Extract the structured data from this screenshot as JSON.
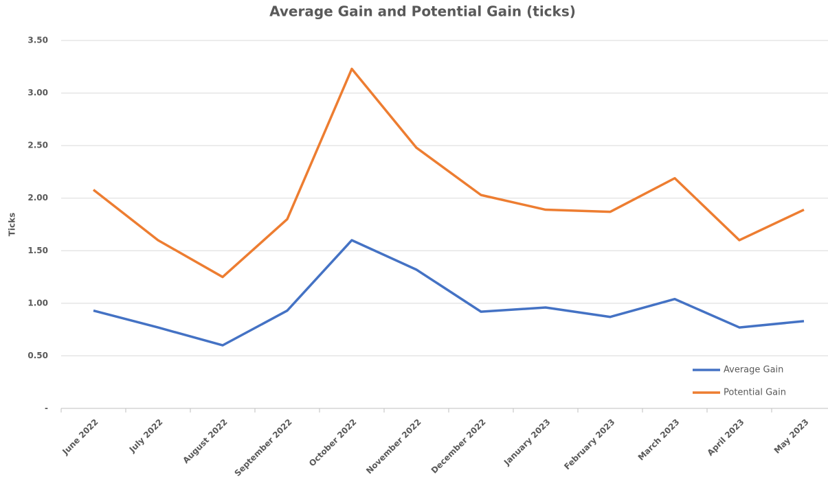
{
  "chart_data": {
    "type": "line",
    "title": "Average Gain and Potential Gain (ticks)",
    "y_label": "Ticks",
    "categories": [
      "June 2022",
      "July 2022",
      "August 2022",
      "September 2022",
      "October 2022",
      "November 2022",
      "December 2022",
      "January 2023",
      "February 2023",
      "March 2023",
      "April 2023",
      "May 2023"
    ],
    "series": [
      {
        "name": "Average Gain",
        "color": "#4472c4",
        "values": [
          0.93,
          0.77,
          0.6,
          0.93,
          1.6,
          1.32,
          0.92,
          0.96,
          0.87,
          1.04,
          0.77,
          0.83
        ]
      },
      {
        "name": "Potential Gain",
        "color": "#ed7d31",
        "values": [
          2.08,
          1.6,
          1.25,
          1.8,
          3.23,
          2.48,
          2.03,
          1.89,
          1.87,
          2.19,
          1.6,
          1.89
        ]
      }
    ],
    "ylim": [
      0,
      3.5
    ],
    "yticks": [
      {
        "value": 0,
        "label": "-"
      },
      {
        "value": 0.5,
        "label": "0.50"
      },
      {
        "value": 1,
        "label": "1.00"
      },
      {
        "value": 1.5,
        "label": "1.50"
      },
      {
        "value": 2,
        "label": "2.00"
      },
      {
        "value": 2.5,
        "label": "2.50"
      },
      {
        "value": 3,
        "label": "3.00"
      },
      {
        "value": 3.5,
        "label": "3.50"
      }
    ],
    "grid": true,
    "legend": "lower right"
  }
}
